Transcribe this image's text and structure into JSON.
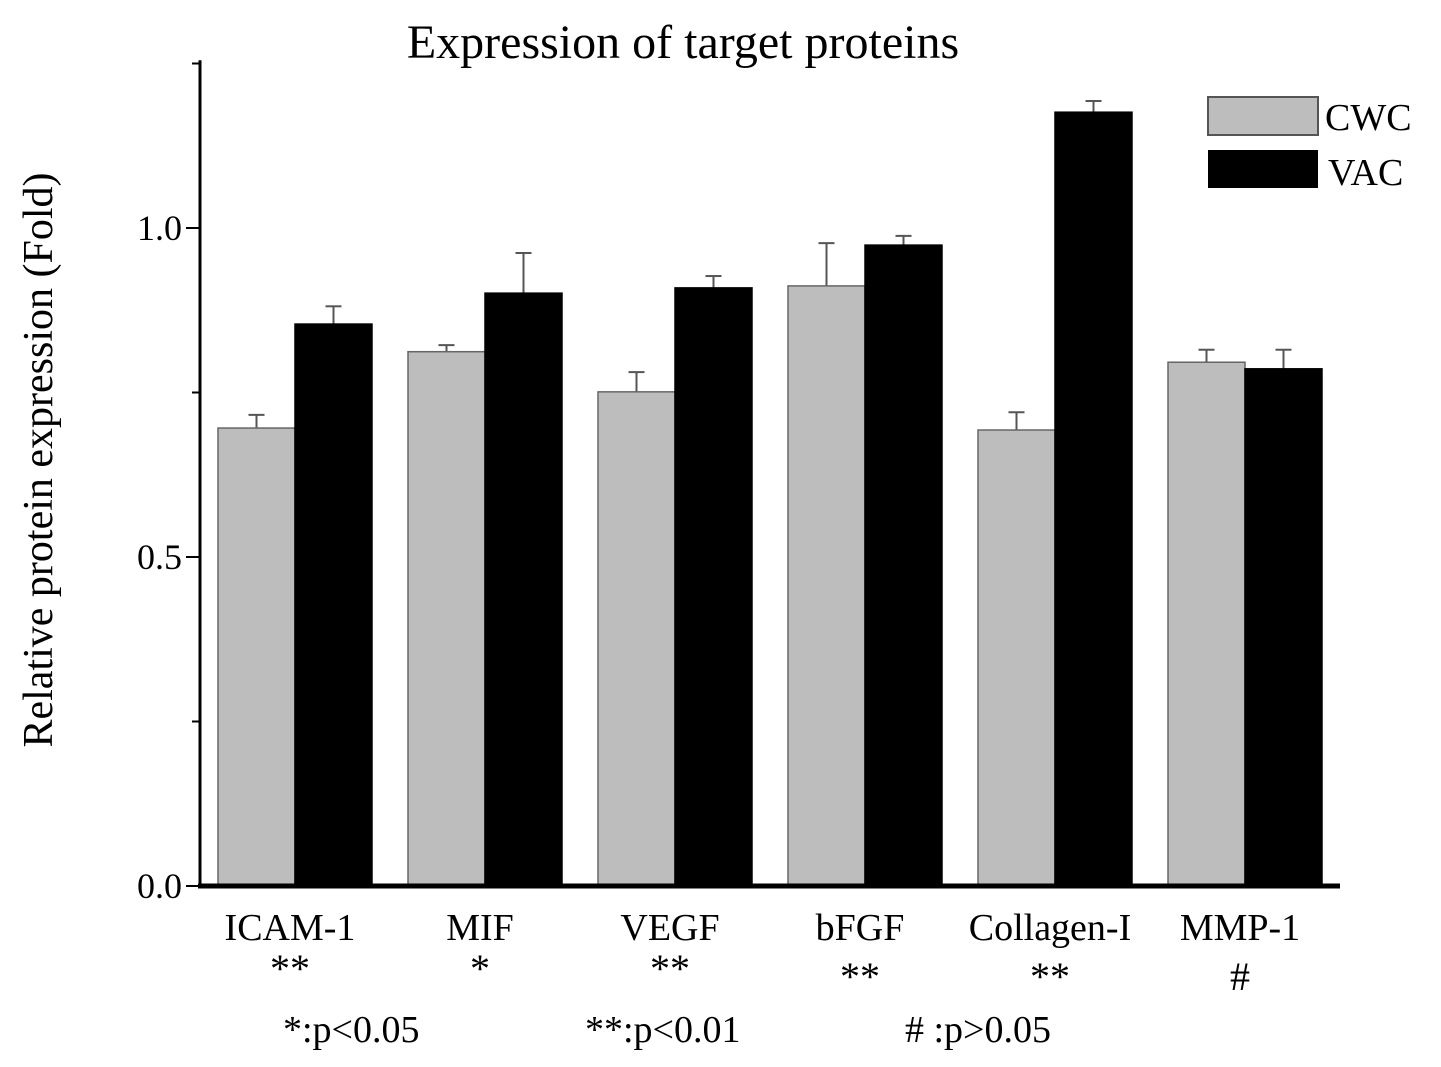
{
  "chart_data": {
    "type": "bar",
    "title": "Expression of target proteins",
    "xlabel": "",
    "ylabel": "Relative protein expression (Fold)",
    "ylim": [
      0,
      1.255
    ],
    "yticks": [
      "0.0",
      "0.5",
      "1.0"
    ],
    "grid": false,
    "legend_position": "top-right",
    "categories": [
      "ICAM-1",
      "MIF",
      "VEGF",
      "bFGF",
      "Collagen-I",
      "MMP-1"
    ],
    "significance": [
      "**",
      "*",
      "**",
      "**",
      "**",
      "#"
    ],
    "series": [
      {
        "name": "CWC",
        "color": "#bdbdbd",
        "values": [
          0.696,
          0.812,
          0.751,
          0.912,
          0.693,
          0.796
        ],
        "errors": [
          0.02,
          0.01,
          0.03,
          0.065,
          0.027,
          0.019
        ]
      },
      {
        "name": "VAC",
        "color": "#000000",
        "values": [
          0.854,
          0.901,
          0.909,
          0.974,
          1.176,
          0.786
        ],
        "errors": [
          0.027,
          0.061,
          0.018,
          0.014,
          0.017,
          0.029
        ]
      }
    ],
    "footnotes": [
      "*:p<0.05",
      "**:p<0.01",
      "# :p>0.05"
    ]
  }
}
